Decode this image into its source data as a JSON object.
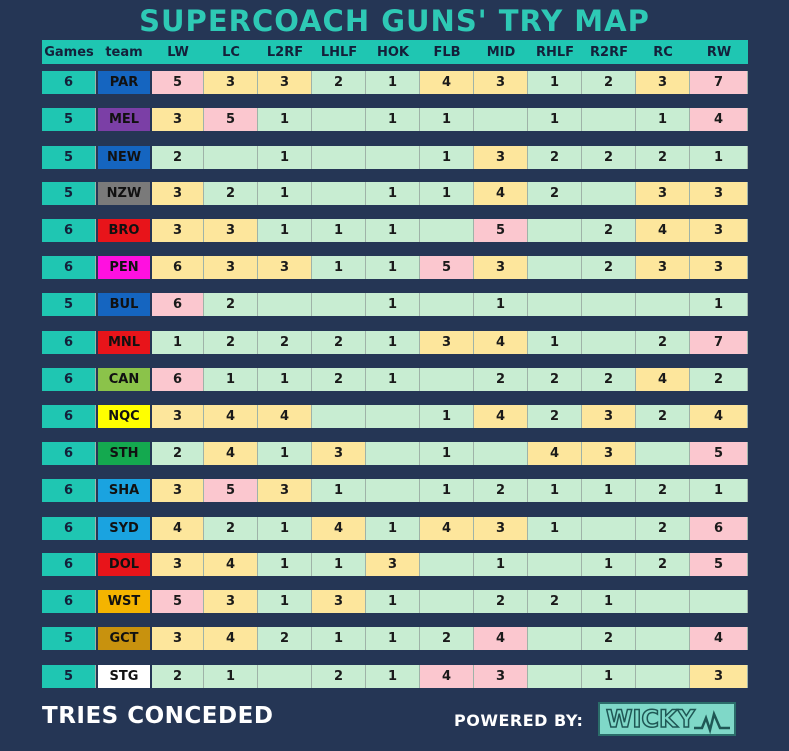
{
  "title": "SUPERCOACH GUNS' TRY MAP",
  "headers": [
    "Games",
    "team",
    "LW",
    "LC",
    "L2RF",
    "LHLF",
    "HOK",
    "FLB",
    "MID",
    "RHLF",
    "R2RF",
    "RC",
    "RW"
  ],
  "rows": [
    {
      "games": "6",
      "team": "PAR",
      "team_bg": "#1565c0",
      "team_fg": "#111111",
      "values": [
        "5",
        "3",
        "3",
        "2",
        "1",
        "4",
        "3",
        "1",
        "2",
        "3",
        "7"
      ],
      "colors": [
        "p",
        "y",
        "y",
        "g",
        "g",
        "y",
        "y",
        "g",
        "g",
        "y",
        "p"
      ]
    },
    {
      "games": "5",
      "team": "MEL",
      "team_bg": "#7b3fa6",
      "team_fg": "#111111",
      "values": [
        "3",
        "5",
        "1",
        "",
        "1",
        "1",
        "",
        "1",
        "",
        "1",
        "4"
      ],
      "colors": [
        "y",
        "p",
        "g",
        "g",
        "g",
        "g",
        "g",
        "g",
        "g",
        "g",
        "p"
      ]
    },
    {
      "games": "5",
      "team": "NEW",
      "team_bg": "#1565c0",
      "team_fg": "#111111",
      "values": [
        "2",
        "",
        "1",
        "",
        "",
        "1",
        "3",
        "2",
        "2",
        "2",
        "1"
      ],
      "colors": [
        "g",
        "g",
        "g",
        "g",
        "g",
        "g",
        "y",
        "g",
        "g",
        "g",
        "g"
      ]
    },
    {
      "games": "5",
      "team": "NZW",
      "team_bg": "#7a7a7a",
      "team_fg": "#111111",
      "values": [
        "3",
        "2",
        "1",
        "",
        "1",
        "1",
        "4",
        "2",
        "",
        "3",
        "3"
      ],
      "colors": [
        "y",
        "g",
        "g",
        "g",
        "g",
        "g",
        "y",
        "g",
        "g",
        "y",
        "y"
      ]
    },
    {
      "games": "6",
      "team": "BRO",
      "team_bg": "#e8141a",
      "team_fg": "#111111",
      "values": [
        "3",
        "3",
        "1",
        "1",
        "1",
        "",
        "5",
        "",
        "2",
        "4",
        "3"
      ],
      "colors": [
        "y",
        "y",
        "g",
        "g",
        "g",
        "g",
        "p",
        "g",
        "g",
        "y",
        "y"
      ]
    },
    {
      "games": "6",
      "team": "PEN",
      "team_bg": "#ff10e0",
      "team_fg": "#111111",
      "values": [
        "6",
        "3",
        "3",
        "1",
        "1",
        "5",
        "3",
        "",
        "2",
        "3",
        "3"
      ],
      "colors": [
        "y",
        "y",
        "y",
        "g",
        "g",
        "p",
        "y",
        "g",
        "g",
        "y",
        "y"
      ]
    },
    {
      "games": "5",
      "team": "BUL",
      "team_bg": "#1565c0",
      "team_fg": "#111111",
      "values": [
        "6",
        "2",
        "",
        "",
        "1",
        "",
        "1",
        "",
        "",
        "",
        "1"
      ],
      "colors": [
        "p",
        "g",
        "g",
        "g",
        "g",
        "g",
        "g",
        "g",
        "g",
        "g",
        "g"
      ]
    },
    {
      "games": "6",
      "team": "MNL",
      "team_bg": "#e8141a",
      "team_fg": "#111111",
      "values": [
        "1",
        "2",
        "2",
        "2",
        "1",
        "3",
        "4",
        "1",
        "",
        "2",
        "7"
      ],
      "colors": [
        "g",
        "g",
        "g",
        "g",
        "g",
        "y",
        "y",
        "g",
        "g",
        "g",
        "p"
      ]
    },
    {
      "games": "6",
      "team": "CAN",
      "team_bg": "#8bc34a",
      "team_fg": "#111111",
      "values": [
        "6",
        "1",
        "1",
        "2",
        "1",
        "",
        "2",
        "2",
        "2",
        "4",
        "2"
      ],
      "colors": [
        "p",
        "g",
        "g",
        "g",
        "g",
        "g",
        "g",
        "g",
        "g",
        "y",
        "g"
      ]
    },
    {
      "games": "6",
      "team": "NQC",
      "team_bg": "#ffff00",
      "team_fg": "#111111",
      "values": [
        "3",
        "4",
        "4",
        "",
        "",
        "1",
        "4",
        "2",
        "3",
        "2",
        "4"
      ],
      "colors": [
        "y",
        "y",
        "y",
        "g",
        "g",
        "g",
        "y",
        "g",
        "y",
        "g",
        "y"
      ]
    },
    {
      "games": "6",
      "team": "STH",
      "team_bg": "#14a94f",
      "team_fg": "#111111",
      "values": [
        "2",
        "4",
        "1",
        "3",
        "",
        "1",
        "",
        "4",
        "3",
        "",
        "5"
      ],
      "colors": [
        "g",
        "y",
        "g",
        "y",
        "g",
        "g",
        "g",
        "y",
        "y",
        "g",
        "p"
      ]
    },
    {
      "games": "6",
      "team": "SHA",
      "team_bg": "#1aa3e0",
      "team_fg": "#111111",
      "values": [
        "3",
        "5",
        "3",
        "1",
        "",
        "1",
        "2",
        "1",
        "1",
        "2",
        "1"
      ],
      "colors": [
        "y",
        "p",
        "y",
        "g",
        "g",
        "g",
        "g",
        "g",
        "g",
        "g",
        "g"
      ]
    },
    {
      "games": "6",
      "team": "SYD",
      "team_bg": "#1aa3e0",
      "team_fg": "#111111",
      "values": [
        "4",
        "2",
        "1",
        "4",
        "1",
        "4",
        "3",
        "1",
        "",
        "2",
        "6"
      ],
      "colors": [
        "y",
        "g",
        "g",
        "y",
        "g",
        "y",
        "y",
        "g",
        "g",
        "g",
        "p"
      ]
    },
    {
      "games": "6",
      "team": "DOL",
      "team_bg": "#e8141a",
      "team_fg": "#111111",
      "values": [
        "3",
        "4",
        "1",
        "1",
        "3",
        "",
        "1",
        "",
        "1",
        "2",
        "5"
      ],
      "colors": [
        "y",
        "y",
        "g",
        "g",
        "y",
        "g",
        "g",
        "g",
        "g",
        "g",
        "p"
      ]
    },
    {
      "games": "6",
      "team": "WST",
      "team_bg": "#f4b400",
      "team_fg": "#111111",
      "values": [
        "5",
        "3",
        "1",
        "3",
        "1",
        "",
        "2",
        "2",
        "1",
        "",
        ""
      ],
      "colors": [
        "p",
        "y",
        "g",
        "y",
        "g",
        "g",
        "g",
        "g",
        "g",
        "g",
        "g"
      ]
    },
    {
      "games": "5",
      "team": "GCT",
      "team_bg": "#c8920e",
      "team_fg": "#111111",
      "values": [
        "3",
        "4",
        "2",
        "1",
        "1",
        "2",
        "4",
        "",
        "2",
        "",
        "4"
      ],
      "colors": [
        "y",
        "y",
        "g",
        "g",
        "g",
        "g",
        "p",
        "g",
        "g",
        "g",
        "p"
      ]
    },
    {
      "games": "5",
      "team": "STG",
      "team_bg": "#ffffff",
      "team_fg": "#111111",
      "values": [
        "2",
        "1",
        "",
        "2",
        "1",
        "4",
        "3",
        "",
        "1",
        "",
        "3"
      ],
      "colors": [
        "g",
        "g",
        "g",
        "g",
        "g",
        "p",
        "p",
        "g",
        "g",
        "g",
        "y"
      ]
    }
  ],
  "footer_left": "TRIES CONCEDED",
  "footer_right": "POWERED BY:",
  "logo_text": "WICKY",
  "logo_icon": "sparkline-icon"
}
